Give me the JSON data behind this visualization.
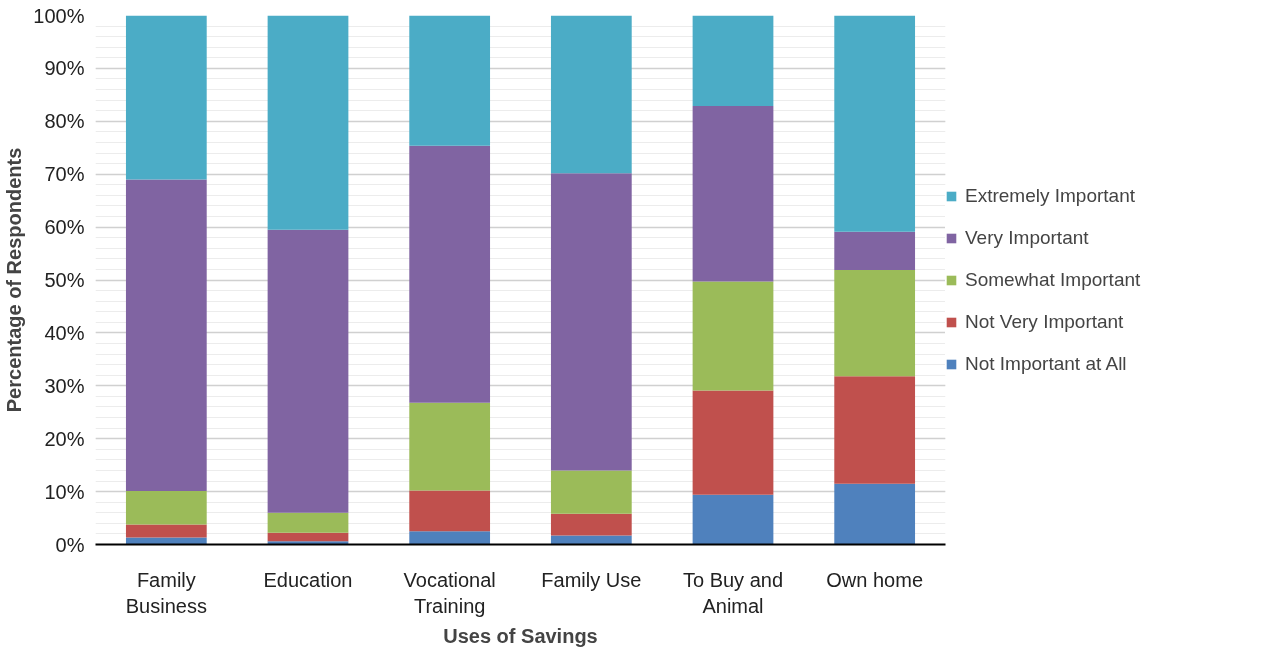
{
  "chart_data": {
    "type": "bar",
    "stacked": true,
    "xlabel": "Uses of Savings",
    "ylabel": "Percentage of Respondents",
    "categories": [
      "Family Business",
      "Education",
      "Vocational Training",
      "Family Use",
      "To Buy and Animal",
      "Own home"
    ],
    "series": [
      {
        "name": "Not Important at All",
        "color": "#4f81bd",
        "values": [
          1.3,
          0.6,
          2.5,
          1.7,
          9.4,
          11.5
        ]
      },
      {
        "name": "Not Very Important",
        "color": "#c0504d",
        "values": [
          2.5,
          1.6,
          7.7,
          4.1,
          19.7,
          20.3
        ]
      },
      {
        "name": "Somewhat Important",
        "color": "#9bbb59",
        "values": [
          6.3,
          3.8,
          16.6,
          8.2,
          20.6,
          20.1
        ]
      },
      {
        "name": "Very Important",
        "color": "#8064a2",
        "values": [
          58.9,
          53.5,
          48.6,
          56.2,
          33.2,
          7.2
        ]
      },
      {
        "name": "Extremely Important",
        "color": "#4bacc6",
        "values": [
          31.0,
          40.5,
          24.6,
          29.8,
          17.1,
          40.9
        ]
      }
    ],
    "ylim": [
      0,
      100
    ],
    "yticks": [
      {
        "value": 0,
        "label": "0%"
      },
      {
        "value": 10,
        "label": "10%"
      },
      {
        "value": 20,
        "label": "20%"
      },
      {
        "value": 30,
        "label": "30%"
      },
      {
        "value": 40,
        "label": "40%"
      },
      {
        "value": 50,
        "label": "50%"
      },
      {
        "value": 60,
        "label": "60%"
      },
      {
        "value": 70,
        "label": "70%"
      },
      {
        "value": 80,
        "label": "80%"
      },
      {
        "value": 90,
        "label": "90%"
      },
      {
        "value": 100,
        "label": "100%"
      }
    ],
    "grid": "y",
    "legend": "right"
  }
}
